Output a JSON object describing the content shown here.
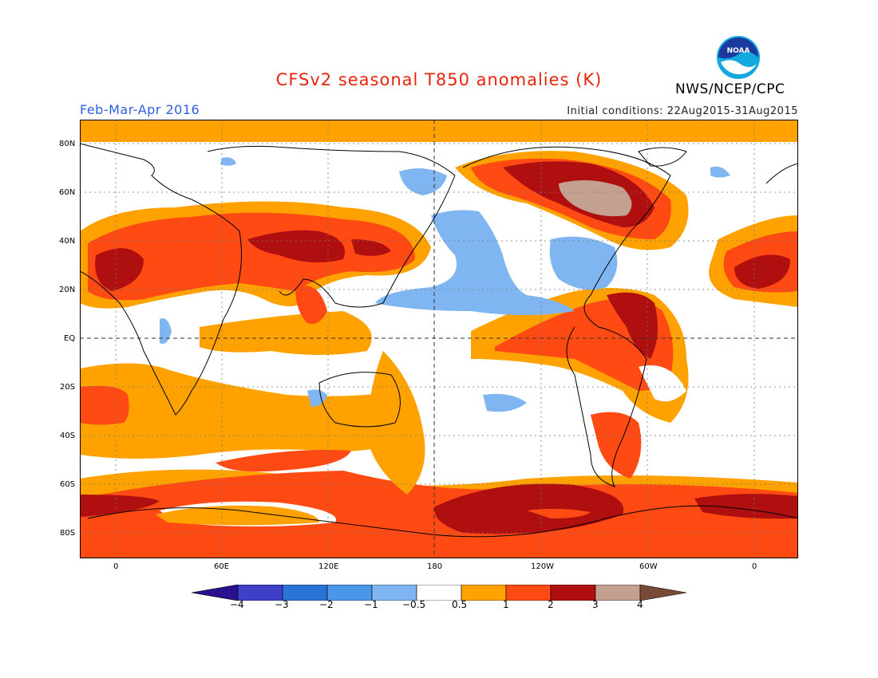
{
  "title": "CFSv2 seasonal T850 anomalies (K)",
  "period": "Feb-Mar-Apr 2016",
  "initial_conditions": "Initial conditions: 22Aug2015-31Aug2015",
  "agency": "NWS/NCEP/CPC",
  "logo_text": "NOAA",
  "colors": {
    "title": "#e8240c",
    "period": "#2f5fe0",
    "c_m4": "#2a0f8f",
    "c_m3": "#3f3fc8",
    "c_m2": "#2a72d6",
    "c_m1": "#4a97ea",
    "c_m05": "#7fb6f2",
    "c_0": "#ffffff",
    "c_05": "#ffa200",
    "c_1": "#ff4a14",
    "c_2": "#b00f0f",
    "c_3": "#c4a090",
    "c_4": "#7a4a38"
  },
  "lat_labels": [
    "80N",
    "60N",
    "40N",
    "20N",
    "EQ",
    "20S",
    "40S",
    "60S",
    "80S"
  ],
  "lon_labels": [
    "0",
    "60E",
    "120E",
    "180",
    "120W",
    "60W",
    "0"
  ],
  "colorbar_labels": [
    "−4",
    "−3",
    "−2",
    "−1",
    "−0.5",
    "0.5",
    "1",
    "2",
    "3",
    "4"
  ]
}
